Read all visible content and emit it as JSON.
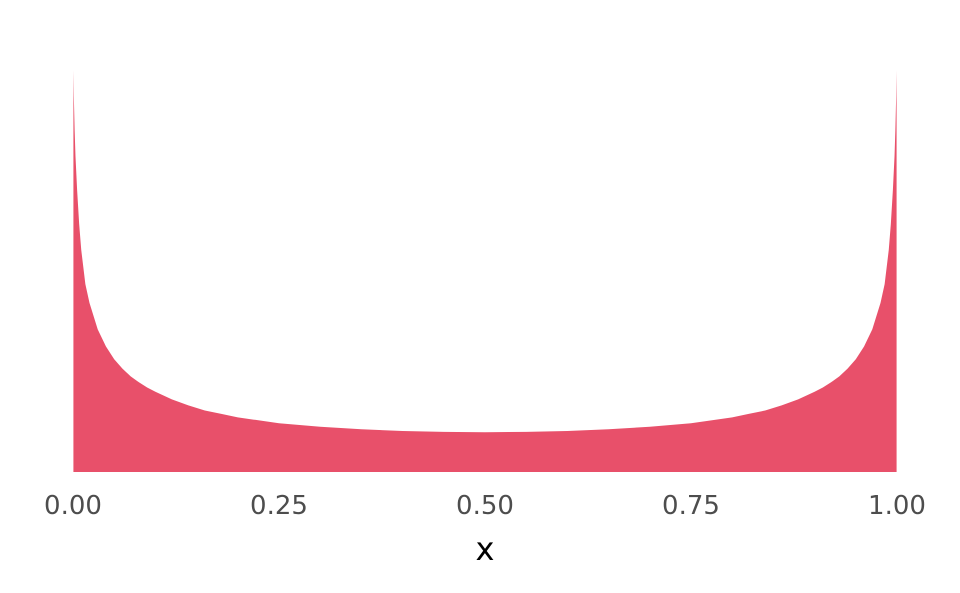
{
  "chart_data": {
    "type": "area",
    "xlabel": "x",
    "ylabel": "",
    "xlim": [
      0,
      1
    ],
    "ylim": [
      0,
      4.8
    ],
    "x_ticks": [
      0,
      0.25,
      0.5,
      0.75,
      1.0
    ],
    "x_tick_labels": [
      "0.00",
      "0.25",
      "0.50",
      "0.75",
      "1.00"
    ],
    "grid": false,
    "legend": "none",
    "fill_color": "#E8506A",
    "series": [
      {
        "x": [
          0.0005,
          0.001,
          0.002,
          0.003,
          0.005,
          0.0075,
          0.01,
          0.015,
          0.02,
          0.03,
          0.04,
          0.05,
          0.06,
          0.07,
          0.08,
          0.09,
          0.1,
          0.12,
          0.14,
          0.16,
          0.18,
          0.2,
          0.25,
          0.3,
          0.35,
          0.4,
          0.45,
          0.5,
          0.55,
          0.6,
          0.65,
          0.7,
          0.75,
          0.8,
          0.82,
          0.84,
          0.86,
          0.88,
          0.9,
          0.91,
          0.92,
          0.93,
          0.94,
          0.95,
          0.96,
          0.97,
          0.98,
          0.985,
          0.99,
          0.9925,
          0.995,
          0.997,
          0.998,
          0.999,
          0.9995
        ],
        "y": [
          4.7,
          4.4,
          4.0,
          3.7,
          3.3,
          2.9,
          2.6,
          2.2,
          1.98,
          1.67,
          1.47,
          1.32,
          1.21,
          1.12,
          1.05,
          0.99,
          0.94,
          0.85,
          0.78,
          0.72,
          0.68,
          0.64,
          0.57,
          0.53,
          0.5,
          0.48,
          0.47,
          0.465,
          0.47,
          0.48,
          0.5,
          0.53,
          0.57,
          0.64,
          0.68,
          0.72,
          0.78,
          0.85,
          0.94,
          0.99,
          1.05,
          1.12,
          1.21,
          1.32,
          1.47,
          1.67,
          1.98,
          2.2,
          2.6,
          2.9,
          3.3,
          3.7,
          4.0,
          4.4,
          4.7
        ]
      }
    ]
  }
}
